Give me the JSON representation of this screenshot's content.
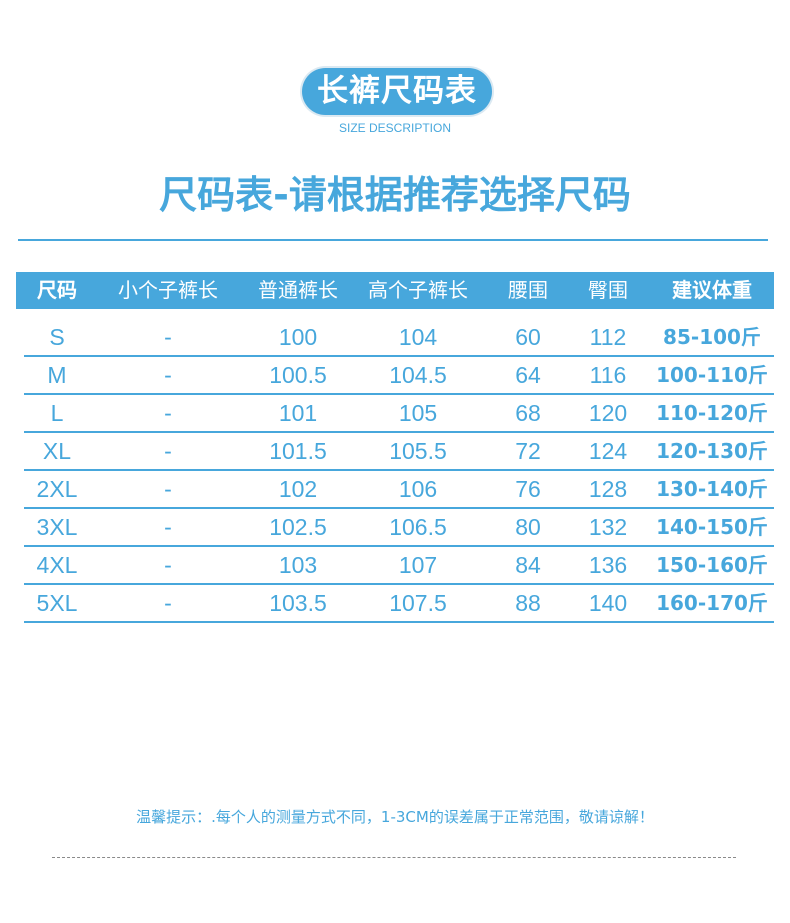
{
  "badge": "长裤尺码表",
  "subtitle": "SIZE DESCRIPTION",
  "title": "尺码表-请根据推荐选择尺码",
  "table": {
    "headers": [
      "尺码",
      "小个子裤长",
      "普通裤长",
      "高个子裤长",
      "腰围",
      "臀围",
      "建议体重"
    ],
    "rows": [
      [
        "S",
        "-",
        "100",
        "104",
        "60",
        "112",
        "85-100斤"
      ],
      [
        "M",
        "-",
        "100.5",
        "104.5",
        "64",
        "116",
        "100-110斤"
      ],
      [
        "L",
        "-",
        "101",
        "105",
        "68",
        "120",
        "110-120斤"
      ],
      [
        "XL",
        "-",
        "101.5",
        "105.5",
        "72",
        "124",
        "120-130斤"
      ],
      [
        "2XL",
        "-",
        "102",
        "106",
        "76",
        "128",
        "130-140斤"
      ],
      [
        "3XL",
        "-",
        "102.5",
        "106.5",
        "80",
        "132",
        "140-150斤"
      ],
      [
        "4XL",
        "-",
        "103",
        "107",
        "84",
        "136",
        "150-160斤"
      ],
      [
        "5XL",
        "-",
        "103.5",
        "107.5",
        "88",
        "140",
        "160-170斤"
      ]
    ]
  },
  "note": "温馨提示：.每个人的测量方式不同，1-3CM的误差属于正常范围，敬请谅解！",
  "colors": {
    "accent": "#47a7dc"
  }
}
